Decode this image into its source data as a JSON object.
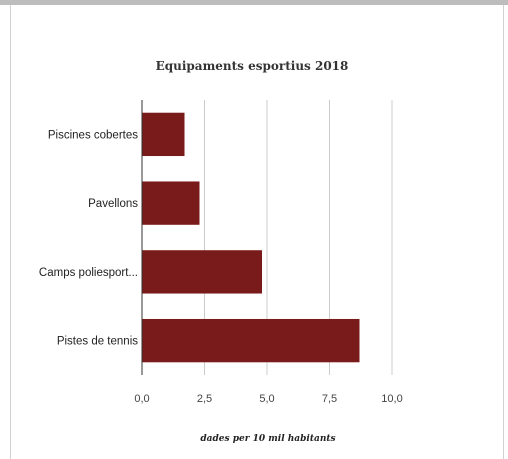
{
  "chart_data": {
    "type": "bar",
    "orientation": "horizontal",
    "title": "Equipaments esportius 2018",
    "xlabel": "dades per 10 mil habitants",
    "ylabel": "",
    "categories": [
      "Piscines cobertes",
      "Pavellons",
      "Camps poliesport...",
      "Pistes de tennis"
    ],
    "values": [
      1.7,
      2.3,
      4.8,
      8.7
    ],
    "xlim": [
      0,
      10
    ],
    "xticks": [
      "0,0",
      "2,5",
      "5,0",
      "7,5",
      "10,0"
    ],
    "bar_color": "#7a1b1b",
    "grid": true,
    "legend": "none"
  }
}
